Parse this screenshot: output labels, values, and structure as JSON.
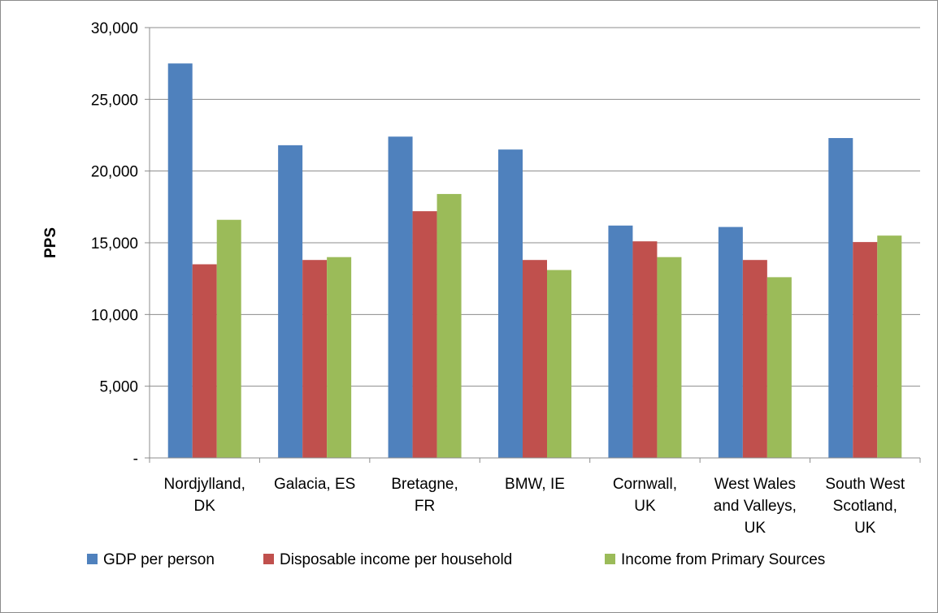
{
  "chart_data": {
    "type": "bar",
    "title": "",
    "xlabel": "",
    "ylabel": "PPS",
    "ylim": [
      0,
      30000
    ],
    "y_ticks": [
      {
        "value": 0,
        "label": "-"
      },
      {
        "value": 5000,
        "label": "5,000"
      },
      {
        "value": 10000,
        "label": "10,000"
      },
      {
        "value": 15000,
        "label": "15,000"
      },
      {
        "value": 20000,
        "label": "20,000"
      },
      {
        "value": 25000,
        "label": "25,000"
      },
      {
        "value": 30000,
        "label": "30,000"
      }
    ],
    "grid": true,
    "legend_position": "bottom",
    "categories": [
      [
        "Nordjylland,",
        "DK"
      ],
      [
        "Galacia, ES"
      ],
      [
        "Bretagne,",
        "FR"
      ],
      [
        "BMW, IE"
      ],
      [
        "Cornwall,",
        "UK"
      ],
      [
        "West Wales",
        "and Valleys,",
        "UK"
      ],
      [
        "South West",
        "Scotland,",
        "UK"
      ]
    ],
    "series": [
      {
        "name": "GDP per person",
        "color": "#4f81bd",
        "values": [
          27500,
          21800,
          22400,
          21500,
          16200,
          16100,
          22300
        ]
      },
      {
        "name": "Disposable income per household",
        "color": "#c0504d",
        "values": [
          13500,
          13800,
          17200,
          13800,
          15100,
          13800,
          15050
        ]
      },
      {
        "name": "Income from Primary Sources",
        "color": "#9bbb59",
        "values": [
          16600,
          14000,
          18400,
          13100,
          14000,
          12600,
          15500
        ]
      }
    ]
  }
}
